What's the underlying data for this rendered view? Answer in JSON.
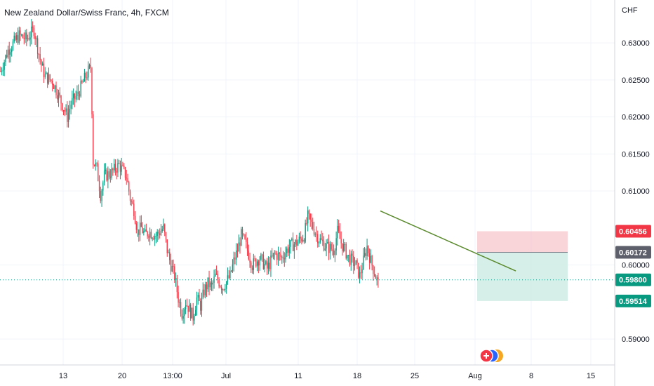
{
  "chart_data": {
    "type": "candlestick",
    "title": "New Zealand Dollar/Swiss Franc, 4h, FXCM",
    "currency": "CHF",
    "y_axis": {
      "range": [
        0.5865,
        0.6358
      ],
      "ticks": [
        {
          "value": 0.63,
          "label": "0.63000"
        },
        {
          "value": 0.625,
          "label": "0.62500"
        },
        {
          "value": 0.62,
          "label": "0.62000"
        },
        {
          "value": 0.615,
          "label": "0.61500"
        },
        {
          "value": 0.61,
          "label": "0.61000"
        },
        {
          "value": 0.6,
          "label": "0.60000"
        },
        {
          "value": 0.59,
          "label": "0.59000"
        }
      ]
    },
    "x_axis": {
      "ticks": [
        "13",
        "20",
        "13:00",
        "Jul",
        "11",
        "18",
        "25",
        "Aug",
        "8",
        "15"
      ]
    },
    "price_tags": [
      {
        "value": 0.60456,
        "label": "0.60456",
        "color": "#f23645"
      },
      {
        "value": 0.60172,
        "label": "0.60172",
        "color": "#5d606b"
      },
      {
        "value": 0.598,
        "label": "0.59800",
        "color": "#089981"
      },
      {
        "value": 0.59514,
        "label": "0.59514",
        "color": "#089981"
      }
    ],
    "current_price": 0.598,
    "position": {
      "type": "short",
      "entry": 0.60172,
      "stop": 0.60456,
      "target": 0.59514,
      "risk_color": "#f7c6cb",
      "reward_color": "#cfece4"
    },
    "trendline": {
      "start": {
        "x": "Jul 20",
        "y": 0.6073
      },
      "end": {
        "x": "Aug 5",
        "y": 0.5992
      },
      "color": "#5b8a2e"
    },
    "colors": {
      "up": "#089981",
      "down": "#f23645"
    },
    "path": {
      "bars_per_day": 6,
      "start_day": 0,
      "anchors": [
        [
          0,
          0.6262
        ],
        [
          1,
          0.629
        ],
        [
          2.5,
          0.631
        ],
        [
          3.5,
          0.6305
        ],
        [
          4.5,
          0.6318
        ],
        [
          5.5,
          0.627
        ],
        [
          6,
          0.6255
        ],
        [
          7,
          0.6248
        ],
        [
          8,
          0.6225
        ],
        [
          9,
          0.62
        ],
        [
          9.5,
          0.6218
        ],
        [
          10.5,
          0.6232
        ],
        [
          11.5,
          0.6255
        ],
        [
          12.2,
          0.6268
        ],
        [
          12.5,
          0.614
        ],
        [
          13,
          0.613
        ],
        [
          13.5,
          0.6095
        ],
        [
          14,
          0.612
        ],
        [
          15,
          0.6125
        ],
        [
          16,
          0.6135
        ],
        [
          17,
          0.612
        ],
        [
          17.5,
          0.609
        ],
        [
          18,
          0.6075
        ],
        [
          18.5,
          0.6045
        ],
        [
          19,
          0.605
        ],
        [
          19.5,
          0.604
        ],
        [
          20,
          0.6045
        ],
        [
          21,
          0.604
        ],
        [
          22,
          0.605
        ],
        [
          22.5,
          0.602
        ],
        [
          23,
          0.6
        ],
        [
          23.5,
          0.5985
        ],
        [
          24,
          0.5955
        ],
        [
          24.5,
          0.5935
        ],
        [
          25,
          0.595
        ],
        [
          25.5,
          0.594
        ],
        [
          26,
          0.593
        ],
        [
          26.5,
          0.5955
        ],
        [
          27,
          0.5945
        ],
        [
          27.5,
          0.5965
        ],
        [
          28,
          0.5975
        ],
        [
          28.5,
          0.597
        ],
        [
          29,
          0.5985
        ],
        [
          30,
          0.597
        ],
        [
          31,
          0.5985
        ],
        [
          31.5,
          0.6005
        ],
        [
          32,
          0.602
        ],
        [
          32.5,
          0.604
        ],
        [
          33,
          0.603
        ],
        [
          33.5,
          0.6015
        ],
        [
          34,
          0.6
        ],
        [
          35,
          0.601
        ],
        [
          36,
          0.5995
        ],
        [
          37,
          0.6015
        ],
        [
          38,
          0.601
        ],
        [
          39,
          0.6025
        ],
        [
          40,
          0.603
        ],
        [
          41,
          0.604
        ],
        [
          41.5,
          0.6065
        ],
        [
          42,
          0.6055
        ],
        [
          43,
          0.6035
        ],
        [
          44,
          0.6025
        ],
        [
          45,
          0.602
        ],
        [
          45.5,
          0.6045
        ],
        [
          46,
          0.603
        ],
        [
          47,
          0.601
        ],
        [
          48,
          0.6
        ],
        [
          48.5,
          0.5985
        ],
        [
          49,
          0.6005
        ],
        [
          49.5,
          0.6025
        ],
        [
          50,
          0.6005
        ],
        [
          50.5,
          0.599
        ],
        [
          51,
          0.5975
        ]
      ]
    }
  }
}
